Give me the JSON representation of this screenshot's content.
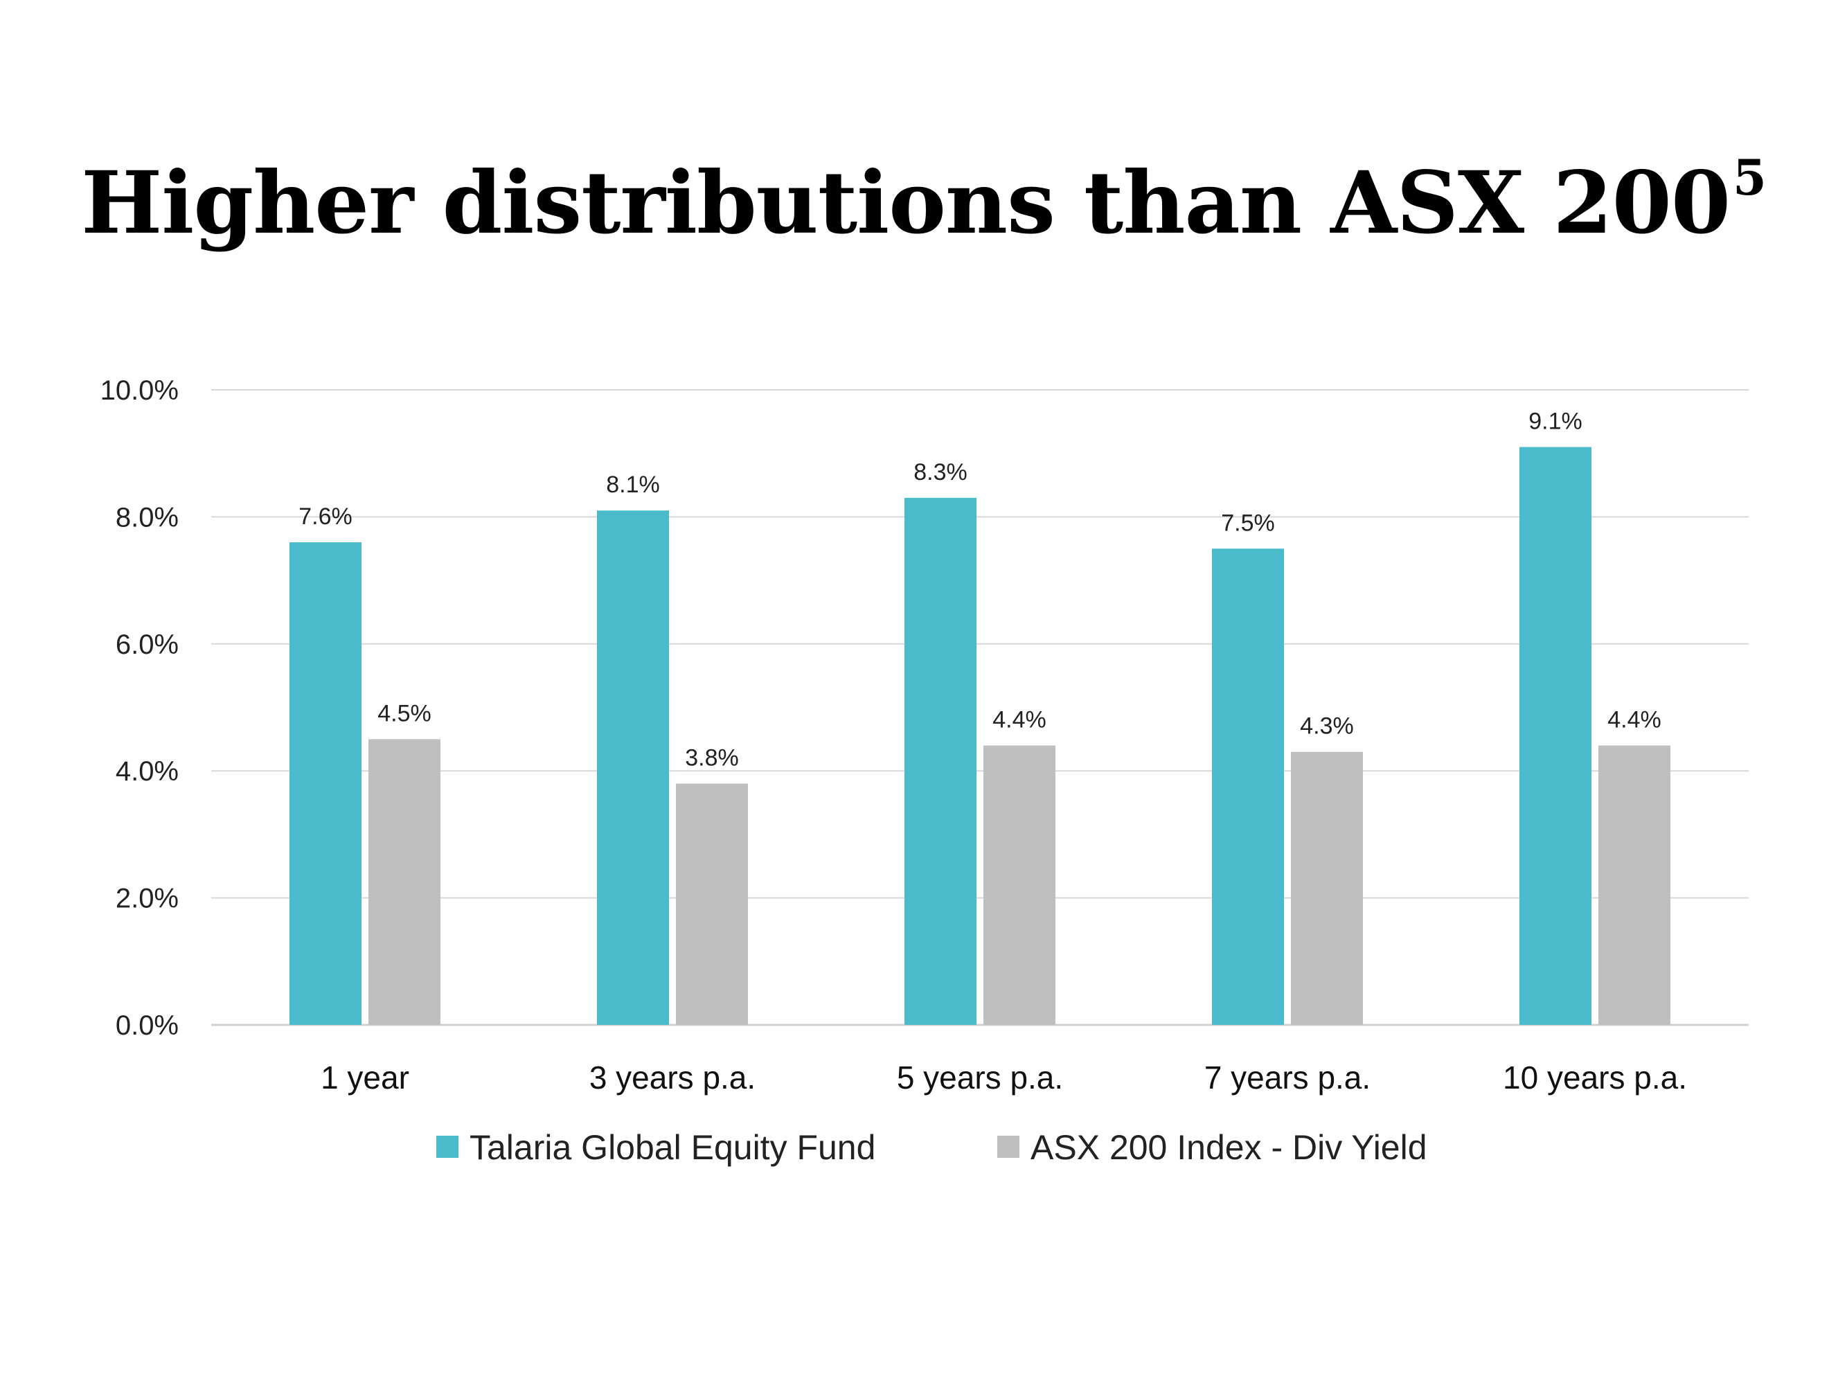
{
  "title": "Higher distributions than ASX 200",
  "title_superscript": "5",
  "chart_data": {
    "type": "bar",
    "categories": [
      "1 year",
      "3 years p.a.",
      "5 years p.a.",
      "7 years p.a.",
      "10 years p.a."
    ],
    "series": [
      {
        "name": "Talaria Global Equity Fund",
        "color": "#4BBACB",
        "values": [
          7.6,
          8.1,
          8.3,
          7.5,
          9.1
        ],
        "labels": [
          "7.6%",
          "8.1%",
          "8.3%",
          "7.5%",
          "9.1%"
        ]
      },
      {
        "name": "ASX 200  Index - Div Yield",
        "color": "#BFBFBF",
        "values": [
          4.5,
          3.8,
          4.4,
          4.3,
          4.4
        ],
        "labels": [
          "4.5%",
          "3.8%",
          "4.4%",
          "4.3%",
          "4.4%"
        ]
      }
    ],
    "yticks": [
      "0.0%",
      "2.0%",
      "4.0%",
      "6.0%",
      "8.0%",
      "10.0%"
    ],
    "ylim": [
      0,
      10
    ],
    "grid": true,
    "legend": "bottom"
  }
}
